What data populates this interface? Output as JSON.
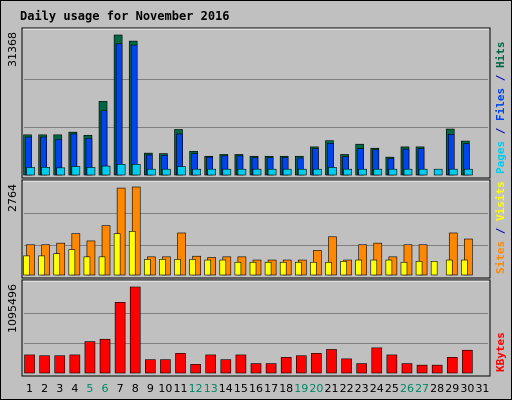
{
  "colors": {
    "hits": "#006644",
    "files": "#0044ee",
    "pages": "#00ccee",
    "visits": "#ffff00",
    "sites": "#ff8800",
    "kbytes": "#ff0000",
    "title": "#0000cc",
    "weekend": "#008866",
    "weekday": "#000000",
    "grid": "#808080",
    "panel": "#c0c0c0",
    "slash": "#0000aa"
  },
  "chart_data": {
    "type": "bar",
    "title": "Daily usage for November 2016",
    "categories": [
      "1",
      "2",
      "3",
      "4",
      "5",
      "6",
      "7",
      "8",
      "9",
      "10",
      "11",
      "12",
      "13",
      "14",
      "15",
      "16",
      "17",
      "18",
      "19",
      "20",
      "21",
      "22",
      "23",
      "24",
      "25",
      "26",
      "27",
      "28",
      "29",
      "30",
      "31"
    ],
    "weekend_days": [
      "5",
      "6",
      "12",
      "13",
      "19",
      "20",
      "26",
      "27"
    ],
    "panels": [
      {
        "name": "top",
        "max_label": "31368",
        "ymax": 31368,
        "right_labels": [
          {
            "text": "Pages",
            "color_key": "pages"
          },
          {
            "text": " / ",
            "color_key": "slash"
          },
          {
            "text": "Files",
            "color_key": "files"
          },
          {
            "text": " / ",
            "color_key": "slash"
          },
          {
            "text": "Hits",
            "color_key": "hits"
          }
        ],
        "series": [
          {
            "name": "Hits",
            "color_key": "hits",
            "values": [
              9000,
              9000,
              9000,
              9600,
              8900,
              16500,
              31368,
              30000,
              4900,
              4800,
              10200,
              5300,
              4200,
              4600,
              4600,
              4200,
              4200,
              4200,
              4200,
              6300,
              7700,
              4600,
              6900,
              6000,
              4000,
              6300,
              6300,
              0,
              10300,
              7600,
              0
            ]
          },
          {
            "name": "Files",
            "color_key": "files",
            "values": [
              8500,
              8500,
              8000,
              9200,
              8200,
              14400,
              29400,
              29100,
              4500,
              4400,
              9200,
              4800,
              4000,
              4300,
              4300,
              3900,
              3900,
              3900,
              3800,
              5900,
              7100,
              4100,
              5900,
              5700,
              3700,
              5800,
              5900,
              0,
              9100,
              7000,
              0
            ]
          },
          {
            "name": "Pages",
            "color_key": "pages",
            "values": [
              1700,
              1700,
              1600,
              1900,
              1700,
              2000,
              2400,
              2400,
              1300,
              1300,
              1900,
              1300,
              1300,
              1300,
              1300,
              1300,
              1300,
              1300,
              1300,
              1300,
              1700,
              1300,
              1300,
              1300,
              1300,
              1300,
              1300,
              1300,
              1300,
              1300,
              0
            ]
          }
        ]
      },
      {
        "name": "middle",
        "max_label": "2764",
        "ymax": 2764,
        "right_labels": [
          {
            "text": "Sites",
            "color_key": "sites"
          },
          {
            "text": " / ",
            "color_key": "slash"
          },
          {
            "text": "Visits",
            "color_key": "visits"
          }
        ],
        "series": [
          {
            "name": "Sites",
            "color_key": "sites",
            "values": [
              950,
              950,
              1000,
              1300,
              1070,
              1550,
              2730,
              2764,
              570,
              570,
              1320,
              590,
              550,
              570,
              570,
              470,
              470,
              470,
              470,
              770,
              1200,
              470,
              950,
              1000,
              570,
              950,
              950,
              0,
              1320,
              1130,
              0
            ]
          },
          {
            "name": "Visits",
            "color_key": "visits",
            "values": [
              600,
              600,
              670,
              800,
              570,
              570,
              1300,
              1370,
              490,
              490,
              490,
              490,
              470,
              470,
              400,
              400,
              400,
              400,
              400,
              400,
              400,
              430,
              470,
              470,
              470,
              400,
              430,
              430,
              470,
              470,
              0
            ]
          }
        ]
      },
      {
        "name": "bottom",
        "max_label": "1095496",
        "ymax": 1095496,
        "right_labels": [
          {
            "text": "KBytes",
            "color_key": "kbytes"
          }
        ],
        "series": [
          {
            "name": "KBytes",
            "color_key": "kbytes",
            "values": [
              230000,
              220000,
              220000,
              230000,
              400000,
              430000,
              900000,
              1095496,
              170000,
              170000,
              250000,
              110000,
              230000,
              170000,
              230000,
              120000,
              120000,
              200000,
              220000,
              250000,
              300000,
              180000,
              120000,
              320000,
              230000,
              120000,
              100000,
              100000,
              200000,
              290000,
              0
            ]
          }
        ]
      }
    ]
  }
}
